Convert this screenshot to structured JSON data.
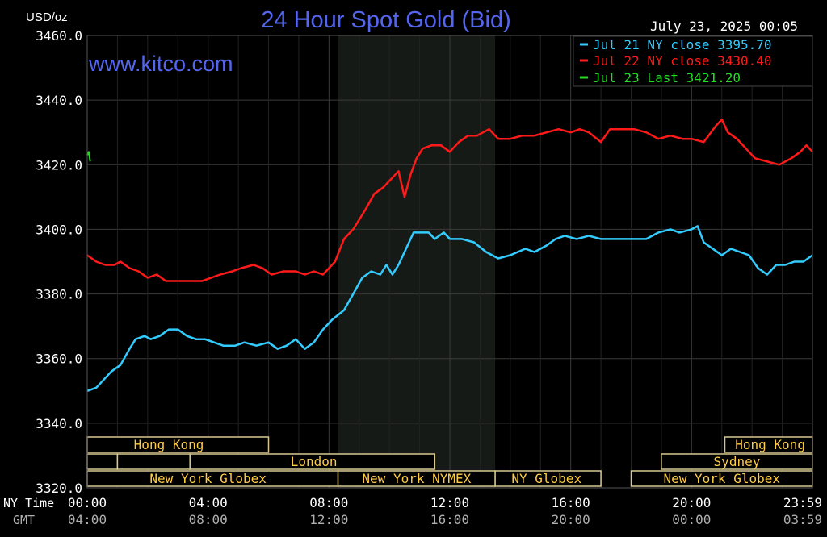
{
  "chart_data": {
    "type": "line",
    "title": "24 Hour Spot Gold (Bid)",
    "unit_label": "USD/oz",
    "watermark": "www.kitco.com",
    "timestamp": "July 23, 2025 00:05",
    "ylim": [
      3320,
      3460
    ],
    "y_ticks": [
      {
        "value": 3460,
        "label": "3460.0"
      },
      {
        "value": 3440,
        "label": "3440.0"
      },
      {
        "value": 3420,
        "label": "3420.0"
      },
      {
        "value": 3400,
        "label": "3400.0"
      },
      {
        "value": 3380,
        "label": "3380.0"
      },
      {
        "value": 3360,
        "label": "3360.0"
      },
      {
        "value": 3340,
        "label": "3340.0"
      },
      {
        "value": 3320,
        "label": "3320.0"
      }
    ],
    "xlim": [
      0,
      24
    ],
    "x_row_labels": {
      "ny": "NY Time",
      "gmt": "GMT"
    },
    "x_ticks": [
      {
        "hour": 0,
        "ny": "00:00",
        "gmt": "04:00"
      },
      {
        "hour": 4,
        "ny": "04:00",
        "gmt": "08:00"
      },
      {
        "hour": 8,
        "ny": "08:00",
        "gmt": "12:00"
      },
      {
        "hour": 12,
        "ny": "12:00",
        "gmt": "16:00"
      },
      {
        "hour": 16,
        "ny": "16:00",
        "gmt": "20:00"
      },
      {
        "hour": 20,
        "ny": "20:00",
        "gmt": "00:00"
      },
      {
        "hour": 24,
        "ny": "23:59",
        "gmt": "03:59"
      }
    ],
    "grid": true,
    "legend_position": "top-right",
    "shaded_session": {
      "start_hour": 8.3,
      "end_hour": 13.5,
      "color": "#161a16"
    },
    "series": [
      {
        "name": "Jul 21 NY close 3395.70",
        "color": "#33ccff",
        "points": [
          [
            0.0,
            3350
          ],
          [
            0.3,
            3351
          ],
          [
            0.5,
            3353
          ],
          [
            0.8,
            3356
          ],
          [
            1.1,
            3358
          ],
          [
            1.4,
            3363
          ],
          [
            1.6,
            3366
          ],
          [
            1.9,
            3367
          ],
          [
            2.1,
            3366
          ],
          [
            2.4,
            3367
          ],
          [
            2.7,
            3369
          ],
          [
            3.0,
            3369
          ],
          [
            3.3,
            3367
          ],
          [
            3.6,
            3366
          ],
          [
            3.9,
            3366
          ],
          [
            4.2,
            3365
          ],
          [
            4.5,
            3364
          ],
          [
            4.9,
            3364
          ],
          [
            5.2,
            3365
          ],
          [
            5.6,
            3364
          ],
          [
            6.0,
            3365
          ],
          [
            6.3,
            3363
          ],
          [
            6.6,
            3364
          ],
          [
            6.9,
            3366
          ],
          [
            7.2,
            3363
          ],
          [
            7.5,
            3365
          ],
          [
            7.8,
            3369
          ],
          [
            8.1,
            3372
          ],
          [
            8.5,
            3375
          ],
          [
            8.8,
            3380
          ],
          [
            9.1,
            3385
          ],
          [
            9.4,
            3387
          ],
          [
            9.7,
            3386
          ],
          [
            9.9,
            3389
          ],
          [
            10.1,
            3386
          ],
          [
            10.3,
            3389
          ],
          [
            10.5,
            3393
          ],
          [
            10.8,
            3399
          ],
          [
            11.0,
            3399
          ],
          [
            11.3,
            3399
          ],
          [
            11.5,
            3397
          ],
          [
            11.8,
            3399
          ],
          [
            12.0,
            3397
          ],
          [
            12.4,
            3397
          ],
          [
            12.8,
            3396
          ],
          [
            13.2,
            3393
          ],
          [
            13.6,
            3391
          ],
          [
            14.0,
            3392
          ],
          [
            14.5,
            3394
          ],
          [
            14.8,
            3393
          ],
          [
            15.2,
            3395
          ],
          [
            15.5,
            3397
          ],
          [
            15.8,
            3398
          ],
          [
            16.2,
            3397
          ],
          [
            16.6,
            3398
          ],
          [
            17.0,
            3397
          ],
          [
            17.5,
            3397
          ],
          [
            18.0,
            3397
          ],
          [
            18.5,
            3397
          ],
          [
            18.9,
            3399
          ],
          [
            19.3,
            3400
          ],
          [
            19.6,
            3399
          ],
          [
            20.0,
            3400
          ],
          [
            20.2,
            3401
          ],
          [
            20.4,
            3396
          ],
          [
            20.7,
            3394
          ],
          [
            21.0,
            3392
          ],
          [
            21.3,
            3394
          ],
          [
            21.6,
            3393
          ],
          [
            21.9,
            3392
          ],
          [
            22.2,
            3388
          ],
          [
            22.5,
            3386
          ],
          [
            22.8,
            3389
          ],
          [
            23.1,
            3389
          ],
          [
            23.4,
            3390
          ],
          [
            23.7,
            3390
          ],
          [
            24.0,
            3392
          ]
        ]
      },
      {
        "name": "Jul 22 NY close 3430.40",
        "color": "#ff1a1a",
        "points": [
          [
            0.0,
            3392
          ],
          [
            0.3,
            3390
          ],
          [
            0.6,
            3389
          ],
          [
            0.9,
            3389
          ],
          [
            1.1,
            3390
          ],
          [
            1.4,
            3388
          ],
          [
            1.7,
            3387
          ],
          [
            2.0,
            3385
          ],
          [
            2.3,
            3386
          ],
          [
            2.6,
            3384
          ],
          [
            3.0,
            3384
          ],
          [
            3.4,
            3384
          ],
          [
            3.8,
            3384
          ],
          [
            4.1,
            3385
          ],
          [
            4.4,
            3386
          ],
          [
            4.8,
            3387
          ],
          [
            5.1,
            3388
          ],
          [
            5.5,
            3389
          ],
          [
            5.8,
            3388
          ],
          [
            6.1,
            3386
          ],
          [
            6.5,
            3387
          ],
          [
            6.9,
            3387
          ],
          [
            7.2,
            3386
          ],
          [
            7.5,
            3387
          ],
          [
            7.8,
            3386
          ],
          [
            8.2,
            3390
          ],
          [
            8.5,
            3397
          ],
          [
            8.8,
            3400
          ],
          [
            9.0,
            3403
          ],
          [
            9.2,
            3406
          ],
          [
            9.5,
            3411
          ],
          [
            9.8,
            3413
          ],
          [
            10.1,
            3416
          ],
          [
            10.3,
            3418
          ],
          [
            10.5,
            3410
          ],
          [
            10.7,
            3417
          ],
          [
            10.9,
            3422
          ],
          [
            11.1,
            3425
          ],
          [
            11.4,
            3426
          ],
          [
            11.7,
            3426
          ],
          [
            12.0,
            3424
          ],
          [
            12.3,
            3427
          ],
          [
            12.6,
            3429
          ],
          [
            12.9,
            3429
          ],
          [
            13.3,
            3431
          ],
          [
            13.6,
            3428
          ],
          [
            14.0,
            3428
          ],
          [
            14.4,
            3429
          ],
          [
            14.8,
            3429
          ],
          [
            15.2,
            3430
          ],
          [
            15.6,
            3431
          ],
          [
            16.0,
            3430
          ],
          [
            16.3,
            3431
          ],
          [
            16.6,
            3430
          ],
          [
            17.0,
            3427
          ],
          [
            17.3,
            3431
          ],
          [
            17.7,
            3431
          ],
          [
            18.1,
            3431
          ],
          [
            18.5,
            3430
          ],
          [
            18.9,
            3428
          ],
          [
            19.3,
            3429
          ],
          [
            19.7,
            3428
          ],
          [
            20.0,
            3428
          ],
          [
            20.4,
            3427
          ],
          [
            20.8,
            3432
          ],
          [
            21.0,
            3434
          ],
          [
            21.2,
            3430
          ],
          [
            21.5,
            3428
          ],
          [
            21.8,
            3425
          ],
          [
            22.1,
            3422
          ],
          [
            22.5,
            3421
          ],
          [
            22.9,
            3420
          ],
          [
            23.3,
            3422
          ],
          [
            23.6,
            3424
          ],
          [
            23.8,
            3426
          ],
          [
            24.0,
            3424
          ]
        ]
      },
      {
        "name": "Jul 23 Last 3421.20",
        "color": "#22dd22",
        "points": [
          [
            0.0,
            3423
          ],
          [
            0.05,
            3424
          ],
          [
            0.1,
            3421
          ]
        ]
      }
    ],
    "sessions": [
      {
        "label": "Hong Kong",
        "row": 0,
        "start_hour": 0.0,
        "end_hour": 6.0,
        "label_hour": 2.7
      },
      {
        "label": "Hong Kong",
        "row": 0,
        "start_hour": 21.1,
        "end_hour": 24.0,
        "label_hour": 22.6
      },
      {
        "label": "",
        "row": 1,
        "start_hour": 0.0,
        "end_hour": 1.0,
        "label_hour": 0.5
      },
      {
        "label": "",
        "row": 1,
        "start_hour": 1.0,
        "end_hour": 3.4,
        "label_hour": 2.2
      },
      {
        "label": "London",
        "row": 1,
        "start_hour": 3.4,
        "end_hour": 11.5,
        "label_hour": 7.5
      },
      {
        "label": "Sydney",
        "row": 1,
        "start_hour": 19.0,
        "end_hour": 24.0,
        "label_hour": 21.5
      },
      {
        "label": "New York Globex",
        "row": 2,
        "start_hour": 0.0,
        "end_hour": 8.3,
        "label_hour": 4.0
      },
      {
        "label": "New York NYMEX",
        "row": 2,
        "start_hour": 8.3,
        "end_hour": 13.5,
        "label_hour": 10.9
      },
      {
        "label": "NY Globex",
        "row": 2,
        "start_hour": 13.5,
        "end_hour": 17.0,
        "label_hour": 15.2
      },
      {
        "label": "New York Globex",
        "row": 2,
        "start_hour": 18.0,
        "end_hour": 24.0,
        "label_hour": 21.0
      }
    ]
  }
}
